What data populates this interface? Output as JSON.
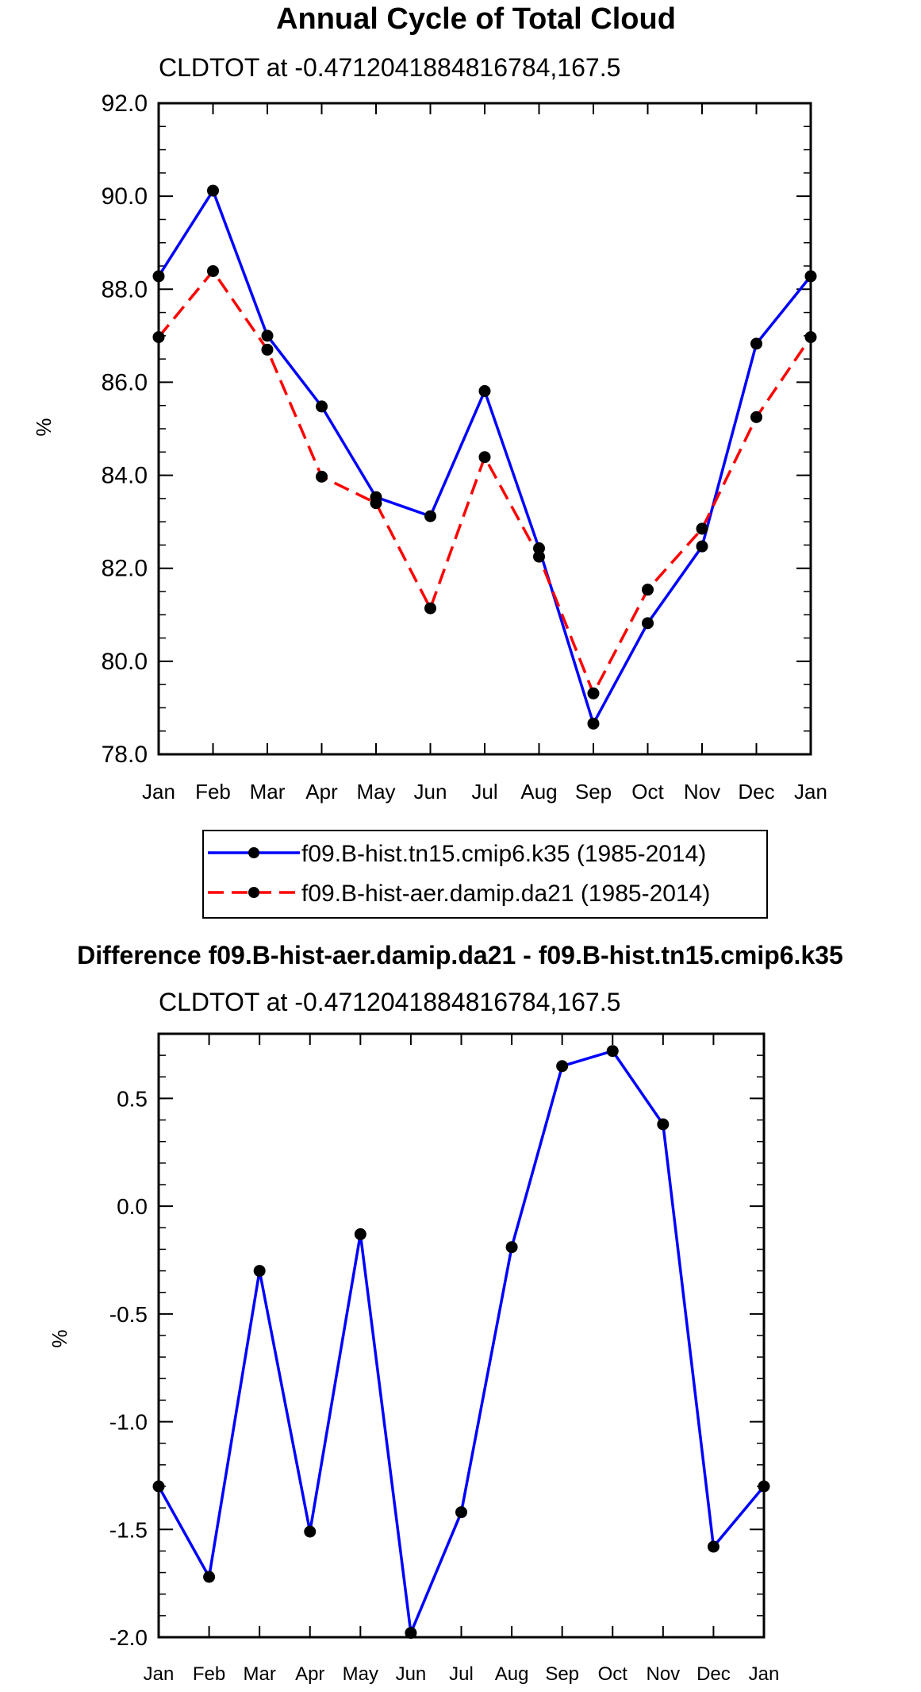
{
  "chart_data": [
    {
      "type": "line",
      "title": "Annual Cycle of Total Cloud",
      "subtitle": "CLDTOT at -0.4712041884816784,167.5",
      "ylabel": "%",
      "xlabel": "",
      "categories": [
        "Jan",
        "Feb",
        "Mar",
        "Apr",
        "May",
        "Jun",
        "Jul",
        "Aug",
        "Sep",
        "Oct",
        "Nov",
        "Dec",
        "Jan"
      ],
      "ylim": [
        78,
        92
      ],
      "yticks": [
        "78.0",
        "80.0",
        "82.0",
        "84.0",
        "86.0",
        "88.0",
        "90.0",
        "92.0"
      ],
      "ytick_values": [
        78,
        80,
        82,
        84,
        86,
        88,
        90,
        92
      ],
      "grid": false,
      "legend_position": "below",
      "series": [
        {
          "name": "f09.B-hist.tn15.cmip6.k35 (1985-2014)",
          "color": "#0000ff",
          "dash": "solid",
          "values": [
            88.28,
            90.12,
            87.0,
            85.48,
            83.53,
            83.12,
            85.81,
            82.43,
            78.66,
            80.82,
            82.47,
            86.83,
            88.28
          ]
        },
        {
          "name": "f09.B-hist-aer.damip.da21 (1985-2014)",
          "color": "#ff0000",
          "dash": "dashed",
          "values": [
            86.97,
            88.39,
            86.7,
            83.97,
            83.4,
            81.14,
            84.39,
            82.25,
            79.31,
            81.54,
            82.85,
            85.25,
            86.97
          ]
        }
      ]
    },
    {
      "type": "line",
      "title": "Difference f09.B-hist-aer.damip.da21 - f09.B-hist.tn15.cmip6.k35",
      "subtitle": "CLDTOT at -0.4712041884816784,167.5",
      "ylabel": "%",
      "xlabel": "",
      "categories": [
        "Jan",
        "Feb",
        "Mar",
        "Apr",
        "May",
        "Jun",
        "Jul",
        "Aug",
        "Sep",
        "Oct",
        "Nov",
        "Dec",
        "Jan"
      ],
      "ylim": [
        -2.0,
        0.8
      ],
      "yticks": [
        "-2.0",
        "-1.5",
        "-1.0",
        "-0.5",
        "0.0",
        "0.5"
      ],
      "ytick_values": [
        -2.0,
        -1.5,
        -1.0,
        -0.5,
        0.0,
        0.5
      ],
      "grid": false,
      "series": [
        {
          "name": "Difference",
          "color": "#0000ff",
          "dash": "solid",
          "values": [
            -1.3,
            -1.72,
            -0.3,
            -1.51,
            -0.13,
            -1.98,
            -1.42,
            -0.19,
            0.65,
            0.72,
            0.38,
            -1.58,
            -1.3
          ]
        }
      ]
    }
  ]
}
